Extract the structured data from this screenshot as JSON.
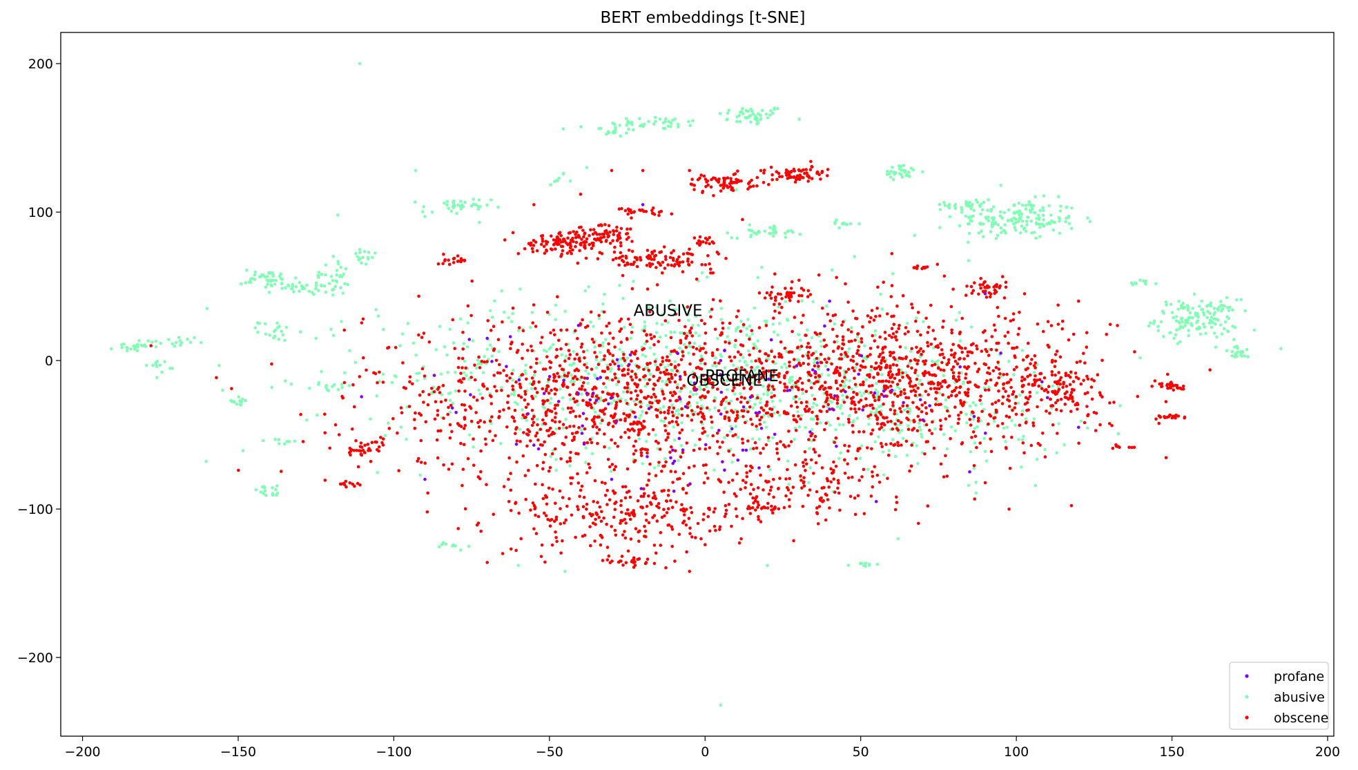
{
  "chart_data": {
    "type": "scatter",
    "title": "BERT embeddings [t-SNE]",
    "xlabel": "",
    "ylabel": "",
    "xlim": [
      -207,
      202
    ],
    "ylim": [
      -253,
      221
    ],
    "xticks": [
      -200,
      -150,
      -100,
      -50,
      0,
      50,
      100,
      150,
      200
    ],
    "yticks": [
      -200,
      -100,
      0,
      100,
      200
    ],
    "xtick_labels": [
      "−200",
      "−150",
      "−100",
      "−50",
      "0",
      "50",
      "100",
      "150",
      "200"
    ],
    "ytick_labels": [
      "−200",
      "−100",
      "0",
      "100",
      "200"
    ],
    "grid": false,
    "legend_position": "lower-right",
    "annotations": [
      {
        "text": "ABUSIVE",
        "x": -23,
        "y": 30
      },
      {
        "text": "PROFANE",
        "x": 0,
        "y": -14
      },
      {
        "text": "OBSCENE",
        "x": -6,
        "y": -17
      }
    ],
    "series": [
      {
        "name": "profane",
        "color": "#8000ff",
        "clusters": [
          {
            "cx": -40,
            "cy": -20,
            "rx": 45,
            "ry": 35,
            "n": 40
          },
          {
            "cx": 40,
            "cy": -20,
            "rx": 50,
            "ry": 35,
            "n": 40
          },
          {
            "cx": 0,
            "cy": -60,
            "rx": 40,
            "ry": 25,
            "n": 20
          }
        ],
        "points": [
          [
            -20,
            105
          ],
          [
            -55,
            -57
          ],
          [
            -90,
            -80
          ],
          [
            -87,
            -10
          ],
          [
            -80,
            -35
          ],
          [
            5,
            0
          ],
          [
            60,
            -20
          ],
          [
            70,
            -40
          ],
          [
            95,
            5
          ],
          [
            110,
            -25
          ],
          [
            -10,
            -88
          ],
          [
            -30,
            -80
          ],
          [
            85,
            -75
          ],
          [
            120,
            -45
          ],
          [
            40,
            40
          ],
          [
            55,
            -95
          ],
          [
            90,
            45
          ],
          [
            -70,
            15
          ]
        ]
      },
      {
        "name": "abusive",
        "color": "#80ffb4",
        "clusters": [
          {
            "cx": 15,
            "cy": 165,
            "rx": 10,
            "ry": 6,
            "n": 45
          },
          {
            "cx": -15,
            "cy": 160,
            "rx": 14,
            "ry": 4,
            "n": 35
          },
          {
            "cx": -30,
            "cy": 155,
            "rx": 7,
            "ry": 4,
            "n": 20
          },
          {
            "cx": 100,
            "cy": 95,
            "rx": 18,
            "ry": 12,
            "n": 160
          },
          {
            "cx": 85,
            "cy": 105,
            "rx": 7,
            "ry": 6,
            "n": 30
          },
          {
            "cx": 63,
            "cy": 127,
            "rx": 6,
            "ry": 4,
            "n": 30
          },
          {
            "cx": 158,
            "cy": 28,
            "rx": 12,
            "ry": 12,
            "n": 140
          },
          {
            "cx": 172,
            "cy": 5,
            "rx": 5,
            "ry": 4,
            "n": 20
          },
          {
            "cx": 140,
            "cy": 52,
            "rx": 5,
            "ry": 2,
            "n": 10
          },
          {
            "cx": -140,
            "cy": 55,
            "rx": 8,
            "ry": 6,
            "n": 40
          },
          {
            "cx": -128,
            "cy": 49,
            "rx": 8,
            "ry": 3,
            "n": 30
          },
          {
            "cx": -120,
            "cy": 57,
            "rx": 5,
            "ry": 12,
            "n": 30
          },
          {
            "cx": -182,
            "cy": 10,
            "rx": 7,
            "ry": 4,
            "n": 25
          },
          {
            "cx": -175,
            "cy": -3,
            "rx": 4,
            "ry": 4,
            "n": 12
          },
          {
            "cx": -168,
            "cy": 13,
            "rx": 5,
            "ry": 3,
            "n": 12
          },
          {
            "cx": -138,
            "cy": 20,
            "rx": 5,
            "ry": 6,
            "n": 20
          },
          {
            "cx": -80,
            "cy": 103,
            "rx": 10,
            "ry": 6,
            "n": 35
          },
          {
            "cx": -110,
            "cy": 70,
            "rx": 4,
            "ry": 6,
            "n": 15
          },
          {
            "cx": -150,
            "cy": -28,
            "rx": 4,
            "ry": 4,
            "n": 12
          },
          {
            "cx": -140,
            "cy": -88,
            "rx": 6,
            "ry": 3,
            "n": 15
          },
          {
            "cx": 20,
            "cy": 87,
            "rx": 10,
            "ry": 4,
            "n": 35
          },
          {
            "cx": 45,
            "cy": 92,
            "rx": 5,
            "ry": 2,
            "n": 10
          },
          {
            "cx": -47,
            "cy": 122,
            "rx": 3,
            "ry": 3,
            "n": 8
          },
          {
            "cx": 50,
            "cy": -138,
            "rx": 5,
            "ry": 2,
            "n": 10
          },
          {
            "cx": -82,
            "cy": -125,
            "rx": 5,
            "ry": 3,
            "n": 10
          },
          {
            "cx": -120,
            "cy": -18,
            "rx": 6,
            "ry": 3,
            "n": 12
          },
          {
            "cx": -135,
            "cy": -55,
            "rx": 5,
            "ry": 2,
            "n": 8
          },
          {
            "cx": -10,
            "cy": -10,
            "rx": 85,
            "ry": 50,
            "n": 750
          },
          {
            "cx": 70,
            "cy": -30,
            "rx": 45,
            "ry": 40,
            "n": 200
          }
        ],
        "points": [
          [
            -111,
            200
          ],
          [
            5,
            -232
          ],
          [
            185,
            8
          ],
          [
            -93,
            128
          ],
          [
            -118,
            98
          ],
          [
            -160,
            35
          ],
          [
            -105,
            30
          ],
          [
            -128,
            -40
          ],
          [
            -125,
            15
          ],
          [
            -98,
            10
          ],
          [
            20,
            -138
          ],
          [
            48,
            70
          ],
          [
            -45,
            -142
          ],
          [
            -60,
            -138
          ],
          [
            62,
            -120
          ],
          [
            -155,
            -20
          ],
          [
            -90,
            97
          ],
          [
            95,
            118
          ],
          [
            -38,
            130
          ],
          [
            10,
            115
          ]
        ]
      },
      {
        "name": "obscene",
        "color": "#ff0000",
        "clusters": [
          {
            "cx": -30,
            "cy": -25,
            "rx": 72,
            "ry": 52,
            "n": 1100
          },
          {
            "cx": 65,
            "cy": -15,
            "rx": 58,
            "ry": 44,
            "n": 1000
          },
          {
            "cx": -25,
            "cy": -105,
            "rx": 38,
            "ry": 22,
            "n": 250
          },
          {
            "cx": 30,
            "cy": -85,
            "rx": 30,
            "ry": 18,
            "n": 120
          },
          {
            "cx": -45,
            "cy": 80,
            "rx": 12,
            "ry": 7,
            "n": 110
          },
          {
            "cx": -30,
            "cy": 85,
            "rx": 8,
            "ry": 8,
            "n": 60
          },
          {
            "cx": -15,
            "cy": 68,
            "rx": 16,
            "ry": 6,
            "n": 100
          },
          {
            "cx": 5,
            "cy": 120,
            "rx": 10,
            "ry": 6,
            "n": 70
          },
          {
            "cx": 30,
            "cy": 125,
            "rx": 10,
            "ry": 5,
            "n": 70
          },
          {
            "cx": -20,
            "cy": 100,
            "rx": 8,
            "ry": 3,
            "n": 25
          },
          {
            "cx": 25,
            "cy": 45,
            "rx": 7,
            "ry": 6,
            "n": 40
          },
          {
            "cx": 90,
            "cy": 48,
            "rx": 6,
            "ry": 6,
            "n": 40
          },
          {
            "cx": 150,
            "cy": -17,
            "rx": 4,
            "ry": 3,
            "n": 30
          },
          {
            "cx": 150,
            "cy": -38,
            "rx": 4,
            "ry": 2,
            "n": 20
          },
          {
            "cx": 135,
            "cy": -58,
            "rx": 3,
            "ry": 1,
            "n": 8
          },
          {
            "cx": -80,
            "cy": 68,
            "rx": 5,
            "ry": 3,
            "n": 20
          },
          {
            "cx": -110,
            "cy": -60,
            "rx": 6,
            "ry": 6,
            "n": 30
          },
          {
            "cx": -115,
            "cy": -83,
            "rx": 4,
            "ry": 2,
            "n": 12
          },
          {
            "cx": 0,
            "cy": 80,
            "rx": 3,
            "ry": 4,
            "n": 15
          },
          {
            "cx": 70,
            "cy": 63,
            "rx": 5,
            "ry": 2,
            "n": 12
          },
          {
            "cx": 115,
            "cy": -20,
            "rx": 10,
            "ry": 15,
            "n": 60
          },
          {
            "cx": 20,
            "cy": -100,
            "rx": 6,
            "ry": 2,
            "n": 15
          },
          {
            "cx": -25,
            "cy": -135,
            "rx": 8,
            "ry": 4,
            "n": 25
          }
        ],
        "points": [
          [
            -178,
            10
          ],
          [
            -55,
            105
          ],
          [
            -40,
            112
          ],
          [
            -60,
            72
          ],
          [
            -30,
            128
          ],
          [
            -20,
            128
          ],
          [
            -5,
            128
          ],
          [
            12,
            95
          ],
          [
            -5,
            -142
          ],
          [
            0,
            -124
          ],
          [
            120,
            40
          ],
          [
            125,
            -35
          ],
          [
            60,
            72
          ],
          [
            -63,
            -95
          ],
          [
            -65,
            -130
          ],
          [
            -70,
            -136
          ],
          [
            -72,
            -115
          ]
        ]
      }
    ]
  }
}
